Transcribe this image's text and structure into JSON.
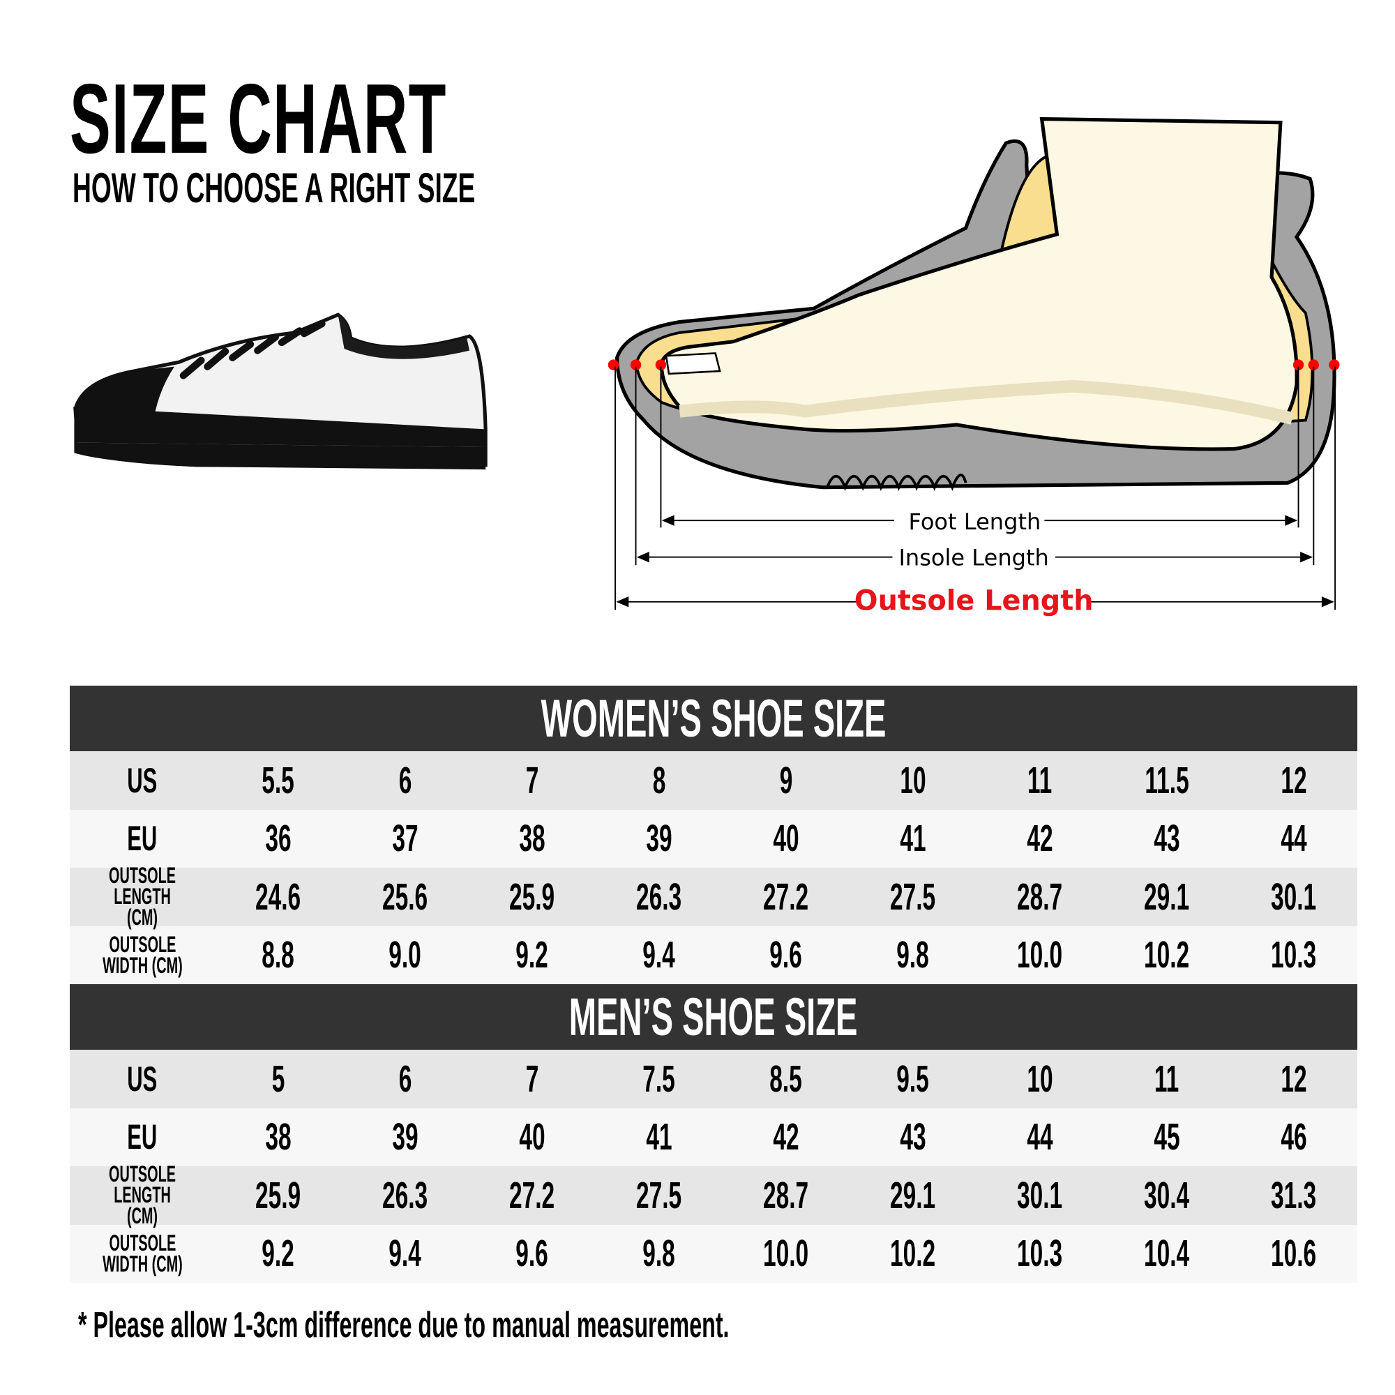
{
  "header": {
    "title": "SIZE CHART",
    "subtitle": "HOW TO CHOOSE A RIGHT SIZE"
  },
  "diagram": {
    "foot_length": "Foot Length",
    "insole_length": "Insole Length",
    "outsole_length": "Outsole Length",
    "highlight_color": "#e8141b",
    "marker_color": "#ff0000"
  },
  "women": {
    "title": "WOMEN’S SHOE SIZE",
    "rows": [
      {
        "label": "US",
        "values": [
          "5.5",
          "6",
          "7",
          "8",
          "9",
          "10",
          "11",
          "11.5",
          "12"
        ]
      },
      {
        "label": "EU",
        "values": [
          "36",
          "37",
          "38",
          "39",
          "40",
          "41",
          "42",
          "43",
          "44"
        ]
      },
      {
        "label": "OUTSOLE\nLENGTH (CM)",
        "values": [
          "24.6",
          "25.6",
          "25.9",
          "26.3",
          "27.2",
          "27.5",
          "28.7",
          "29.1",
          "30.1"
        ]
      },
      {
        "label": "OUTSOLE\nWIDTH (CM)",
        "values": [
          "8.8",
          "9.0",
          "9.2",
          "9.4",
          "9.6",
          "9.8",
          "10.0",
          "10.2",
          "10.3"
        ]
      }
    ]
  },
  "men": {
    "title": "MEN’S SHOE SIZE",
    "rows": [
      {
        "label": "US",
        "values": [
          "5",
          "6",
          "7",
          "7.5",
          "8.5",
          "9.5",
          "10",
          "11",
          "12"
        ]
      },
      {
        "label": "EU",
        "values": [
          "38",
          "39",
          "40",
          "41",
          "42",
          "43",
          "44",
          "45",
          "46"
        ]
      },
      {
        "label": "OUTSOLE\nLENGTH (CM)",
        "values": [
          "25.9",
          "26.3",
          "27.2",
          "27.5",
          "28.7",
          "29.1",
          "30.1",
          "30.4",
          "31.3"
        ]
      },
      {
        "label": "OUTSOLE\nWIDTH (CM)",
        "values": [
          "9.2",
          "9.4",
          "9.6",
          "9.8",
          "10.0",
          "10.2",
          "10.3",
          "10.4",
          "10.6"
        ]
      }
    ]
  },
  "footnote": "* Please allow 1-3cm difference due to manual measurement."
}
